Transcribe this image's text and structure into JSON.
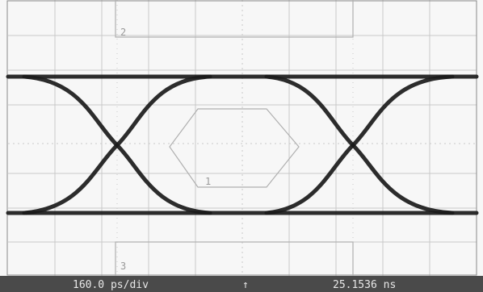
{
  "masks": [
    {
      "label": "1"
    },
    {
      "label": "2"
    },
    {
      "label": "3"
    }
  ],
  "status_bar": {
    "timebase": "160.0 ps/div",
    "trigger_marker": "↑",
    "position": "25.1536 ns"
  }
}
